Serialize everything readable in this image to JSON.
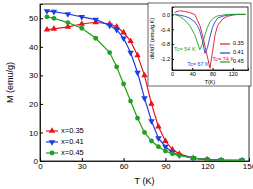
{
  "chart_data": [
    {
      "type": "line",
      "x_label": "T (K)",
      "y_label": "M (emu/g)",
      "xlim": [
        0,
        150
      ],
      "xticks": [
        0,
        30,
        60,
        90,
        120,
        150
      ],
      "ylim": [
        0,
        55
      ],
      "yticks": [
        0,
        10,
        20,
        30,
        40,
        50
      ],
      "grid": false,
      "legend": "lower left",
      "series": [
        {
          "name": "x=0.35",
          "color": "#e8141c",
          "marker": "triangle-up",
          "line_style": "solid",
          "x": [
            5,
            10,
            20,
            30,
            40,
            50,
            55,
            60,
            65,
            70,
            75,
            80,
            85,
            90,
            95,
            100,
            110,
            120,
            130,
            145
          ],
          "values": [
            46,
            46.3,
            47,
            48,
            48.6,
            48,
            47,
            45,
            42,
            37,
            30,
            20,
            12,
            7,
            4,
            2.5,
            1,
            0.5,
            0.3,
            0.2
          ]
        },
        {
          "name": "x=0.41",
          "color": "#1f3ee0",
          "marker": "triangle-down",
          "line_style": "solid",
          "x": [
            5,
            10,
            20,
            30,
            40,
            50,
            55,
            60,
            65,
            70,
            75,
            80,
            85,
            90,
            95,
            100,
            110,
            120,
            130,
            145
          ],
          "values": [
            52.5,
            52.3,
            51.5,
            50.5,
            49.5,
            47.5,
            46,
            43,
            38,
            31,
            22,
            14,
            8,
            5,
            3,
            2,
            1,
            0.5,
            0.3,
            0.2
          ]
        },
        {
          "name": "x=0.45",
          "color": "#1fa01f",
          "marker": "circle",
          "line_style": "solid",
          "x": [
            5,
            10,
            20,
            30,
            40,
            50,
            55,
            60,
            65,
            70,
            75,
            80,
            85,
            90,
            95,
            100,
            110,
            120,
            130,
            145
          ],
          "values": [
            50.5,
            50,
            48.5,
            46.5,
            43,
            38,
            33,
            27,
            21,
            15,
            10,
            7,
            5,
            3.5,
            2.5,
            2,
            1,
            0.5,
            0.3,
            0.2
          ]
        }
      ]
    },
    {
      "type": "line",
      "x_label": "T(K)",
      "y_label": "dM/dT (emu/g.K)",
      "xlim": [
        0,
        150
      ],
      "xticks": [
        0,
        40,
        80,
        120
      ],
      "ylim": [
        -1.5,
        0.2
      ],
      "yticks": [
        {
          "value": 0,
          "label": "0.0"
        },
        -0.4,
        -0.8,
        -1.2
      ],
      "grid": false,
      "legend": "lower right",
      "annotations": [
        {
          "text": "Tc= 54 K",
          "x": 4,
          "y": -1.0,
          "color": "#1fa01f"
        },
        {
          "text": "Tc= 74 K",
          "x": 80,
          "y": -1.25,
          "color": "#e8141c"
        },
        {
          "text": "Tc= 67 K",
          "x": 30,
          "y": -1.38,
          "color": "#1f3ee0"
        }
      ],
      "series": [
        {
          "name": "0.35",
          "color": "#e8141c",
          "line_style": "solid",
          "x": [
            5,
            15,
            25,
            35,
            45,
            50,
            55,
            60,
            65,
            70,
            75,
            80,
            85,
            90,
            100,
            110,
            120,
            130,
            145
          ],
          "values": [
            0.05,
            0.1,
            0.08,
            0.05,
            0,
            -0.15,
            -0.3,
            -0.55,
            -0.85,
            -1.15,
            -1.45,
            -1.0,
            -0.55,
            -0.3,
            -0.12,
            -0.05,
            -0.02,
            0,
            0
          ]
        },
        {
          "name": "0.41",
          "color": "#1f3ee0",
          "line_style": "solid",
          "x": [
            5,
            15,
            25,
            35,
            45,
            50,
            55,
            60,
            65,
            70,
            75,
            80,
            85,
            90,
            100,
            110,
            120,
            130,
            145
          ],
          "values": [
            0,
            -0.02,
            -0.05,
            -0.1,
            -0.2,
            -0.3,
            -0.45,
            -0.7,
            -1.05,
            -0.9,
            -0.6,
            -0.35,
            -0.2,
            -0.1,
            -0.05,
            -0.02,
            0,
            0,
            0
          ]
        },
        {
          "name": "0.45",
          "color": "#1fa01f",
          "line_style": "solid",
          "x": [
            5,
            15,
            25,
            35,
            45,
            50,
            55,
            60,
            65,
            70,
            75,
            80,
            85,
            90,
            100,
            110,
            120,
            130,
            145
          ],
          "values": [
            0,
            -0.05,
            -0.15,
            -0.3,
            -0.55,
            -0.75,
            -0.95,
            -0.8,
            -0.55,
            -0.35,
            -0.2,
            -0.12,
            -0.07,
            -0.04,
            -0.02,
            0,
            0,
            0,
            0
          ]
        }
      ]
    }
  ]
}
